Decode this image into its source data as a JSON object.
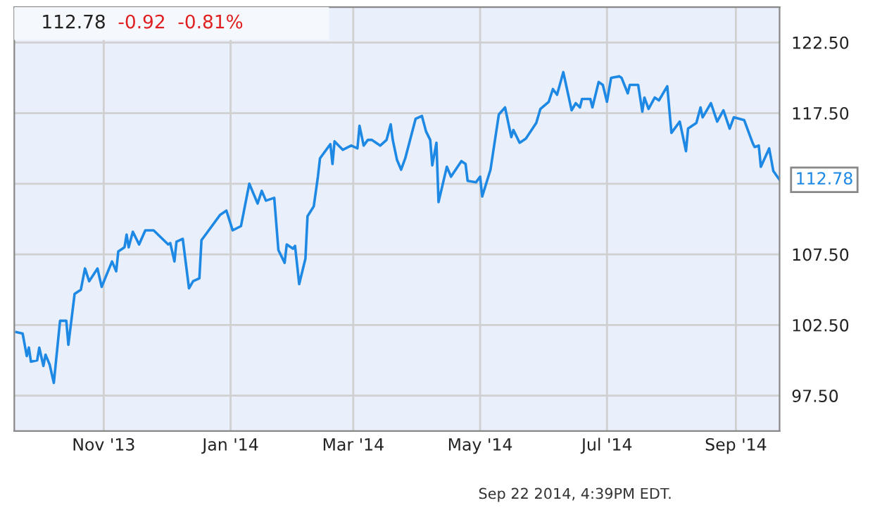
{
  "chart_data": {
    "type": "line",
    "x": [
      "2013-09-20",
      "2013-09-23",
      "2013-09-25",
      "2013-09-26",
      "2013-09-27",
      "2013-09-30",
      "2013-10-01",
      "2013-10-03",
      "2013-10-04",
      "2013-10-06",
      "2013-10-08",
      "2013-10-11",
      "2013-10-14",
      "2013-10-15",
      "2013-10-18",
      "2013-10-21",
      "2013-10-23",
      "2013-10-25",
      "2013-10-29",
      "2013-10-31",
      "2013-11-05",
      "2013-11-07",
      "2013-11-08",
      "2013-11-11",
      "2013-11-12",
      "2013-11-13",
      "2013-11-15",
      "2013-11-18",
      "2013-11-21",
      "2013-11-25",
      "2013-12-02",
      "2013-12-03",
      "2013-12-05",
      "2013-12-06",
      "2013-12-09",
      "2013-12-12",
      "2013-12-14",
      "2013-12-17",
      "2013-12-18",
      "2013-12-21",
      "2013-12-27",
      "2013-12-30",
      "2014-01-02",
      "2014-01-06",
      "2014-01-08",
      "2014-01-10",
      "2014-01-14",
      "2014-01-16",
      "2014-01-18",
      "2014-01-22",
      "2014-01-24",
      "2014-01-27",
      "2014-01-28",
      "2014-01-31",
      "2014-02-01",
      "2014-02-03",
      "2014-02-06",
      "2014-02-07",
      "2014-02-10",
      "2014-02-12",
      "2014-02-13",
      "2014-02-18",
      "2014-02-19",
      "2014-02-20",
      "2014-02-24",
      "2014-02-28",
      "2014-03-03",
      "2014-03-04",
      "2014-03-06",
      "2014-03-08",
      "2014-03-10",
      "2014-03-14",
      "2014-03-17",
      "2014-03-19",
      "2014-03-20",
      "2014-03-22",
      "2014-03-24",
      "2014-03-26",
      "2014-03-31",
      "2014-04-03",
      "2014-04-05",
      "2014-04-07",
      "2014-04-08",
      "2014-04-10",
      "2014-04-11",
      "2014-04-15",
      "2014-04-17",
      "2014-04-22",
      "2014-04-24",
      "2014-04-25",
      "2014-04-29",
      "2014-05-01",
      "2014-05-02",
      "2014-05-06",
      "2014-05-10",
      "2014-05-13",
      "2014-05-16",
      "2014-05-17",
      "2014-05-20",
      "2014-05-23",
      "2014-05-28",
      "2014-05-30",
      "2014-06-03",
      "2014-06-05",
      "2014-06-07",
      "2014-06-10",
      "2014-06-14",
      "2014-06-16",
      "2014-06-18",
      "2014-06-19",
      "2014-06-23",
      "2014-06-24",
      "2014-06-27",
      "2014-06-29",
      "2014-07-01",
      "2014-07-03",
      "2014-07-07",
      "2014-07-08",
      "2014-07-11",
      "2014-07-12",
      "2014-07-16",
      "2014-07-18",
      "2014-07-19",
      "2014-07-21",
      "2014-07-24",
      "2014-07-26",
      "2014-07-30",
      "2014-08-01",
      "2014-08-05",
      "2014-08-08",
      "2014-08-09",
      "2014-08-13",
      "2014-08-15",
      "2014-08-16",
      "2014-08-20",
      "2014-08-23",
      "2014-08-26",
      "2014-08-29",
      "2014-08-31",
      "2014-09-05",
      "2014-09-09",
      "2014-09-10",
      "2014-09-12",
      "2014-09-13",
      "2014-09-17",
      "2014-09-19",
      "2014-09-22"
    ],
    "series": [
      {
        "color": "#1e88e5",
        "values": [
          102.0,
          101.9,
          100.3,
          100.9,
          99.9,
          100.0,
          100.9,
          99.6,
          100.4,
          99.7,
          98.4,
          102.8,
          102.8,
          101.1,
          104.7,
          105.0,
          106.5,
          105.6,
          106.5,
          105.2,
          107.0,
          106.3,
          107.7,
          108.0,
          108.9,
          108.0,
          109.1,
          108.2,
          109.2,
          109.2,
          108.2,
          108.3,
          107.0,
          108.4,
          108.6,
          105.1,
          105.6,
          105.8,
          108.5,
          109.1,
          110.3,
          110.6,
          109.2,
          109.5,
          111.0,
          112.5,
          111.1,
          112.0,
          111.3,
          111.5,
          107.8,
          106.9,
          108.2,
          107.9,
          108.1,
          105.4,
          107.2,
          110.2,
          110.9,
          113.0,
          114.3,
          115.3,
          113.9,
          115.5,
          114.9,
          115.2,
          115.0,
          116.6,
          115.2,
          115.6,
          115.6,
          115.2,
          115.6,
          116.7,
          115.6,
          114.2,
          113.5,
          114.3,
          117.1,
          117.3,
          116.2,
          115.6,
          113.8,
          115.4,
          111.2,
          113.7,
          113.0,
          114.1,
          113.9,
          112.7,
          112.6,
          113.0,
          111.6,
          113.5,
          117.4,
          117.9,
          115.8,
          116.3,
          115.4,
          115.7,
          116.8,
          117.8,
          118.3,
          119.2,
          118.8,
          120.4,
          117.7,
          118.2,
          117.9,
          118.5,
          118.5,
          117.9,
          119.7,
          119.5,
          118.3,
          120.0,
          120.1,
          120.0,
          118.9,
          119.5,
          119.5,
          117.6,
          118.6,
          117.8,
          118.6,
          118.4,
          119.4,
          116.1,
          116.9,
          114.8,
          116.4,
          116.8,
          117.9,
          117.2,
          118.2,
          116.9,
          117.7,
          116.4,
          117.2,
          117.0,
          115.4,
          115.1,
          115.2,
          113.7,
          115.0,
          113.4,
          112.78
        ]
      }
    ],
    "xlim": [
      "2013-09-19",
      "2014-09-22"
    ],
    "xticks": [
      {
        "value": "2013-11-01",
        "label": "Nov '13"
      },
      {
        "value": "2014-01-01",
        "label": "Jan '14"
      },
      {
        "value": "2014-03-01",
        "label": "Mar '14"
      },
      {
        "value": "2014-05-01",
        "label": "May '14"
      },
      {
        "value": "2014-07-01",
        "label": "Jul '14"
      },
      {
        "value": "2014-09-01",
        "label": "Sep '14"
      }
    ],
    "ylim": [
      95,
      125
    ],
    "yticks": [
      {
        "value": 97.5,
        "label": "97.50"
      },
      {
        "value": 102.5,
        "label": "102.50"
      },
      {
        "value": 107.5,
        "label": "107.50"
      },
      {
        "value": 112.5,
        "label": null
      },
      {
        "value": 117.5,
        "label": "117.50"
      },
      {
        "value": 122.5,
        "label": "122.50"
      }
    ],
    "grid": true,
    "annotations": [
      "112.78",
      "-0.92",
      "-0.81%",
      "Sep 22 2014, 4:39PM EDT.",
      {
        "text": "112.78",
        "x": "2014-09-22",
        "y": 112.78
      }
    ]
  }
}
